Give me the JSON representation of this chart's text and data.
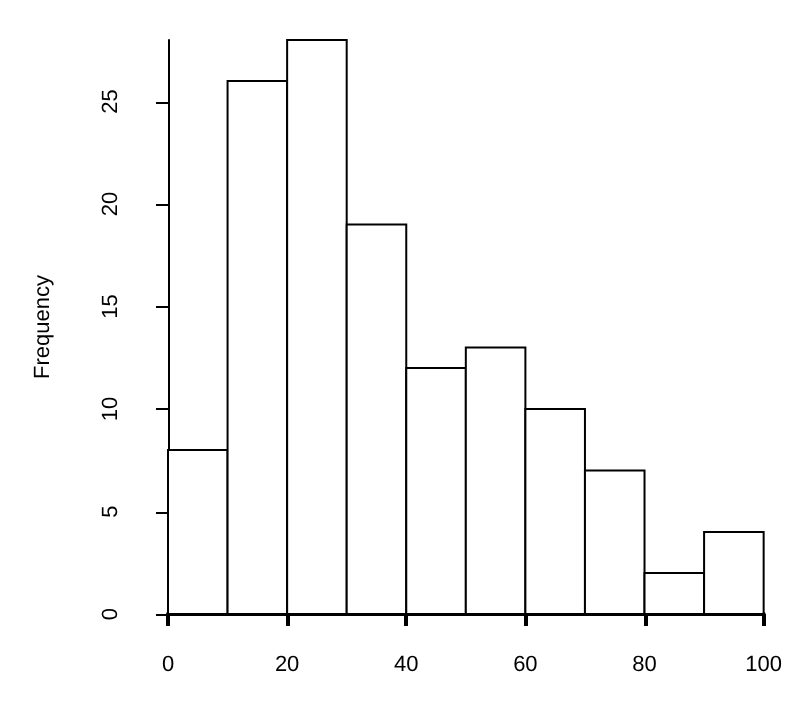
{
  "chart_data": {
    "type": "histogram",
    "ylabel": "Frequency",
    "bins": [
      0,
      10,
      20,
      30,
      40,
      50,
      60,
      70,
      80,
      90,
      100
    ],
    "values": [
      8,
      26,
      28,
      19,
      12,
      13,
      10,
      7,
      2,
      4
    ],
    "color": "#ffffff",
    "xlim": [
      0,
      100
    ],
    "xticks": [
      0,
      20,
      40,
      60,
      80,
      100
    ],
    "ylim": [
      0,
      28
    ],
    "yticks": [
      0,
      5,
      10,
      15,
      20,
      25
    ],
    "grid": false
  }
}
